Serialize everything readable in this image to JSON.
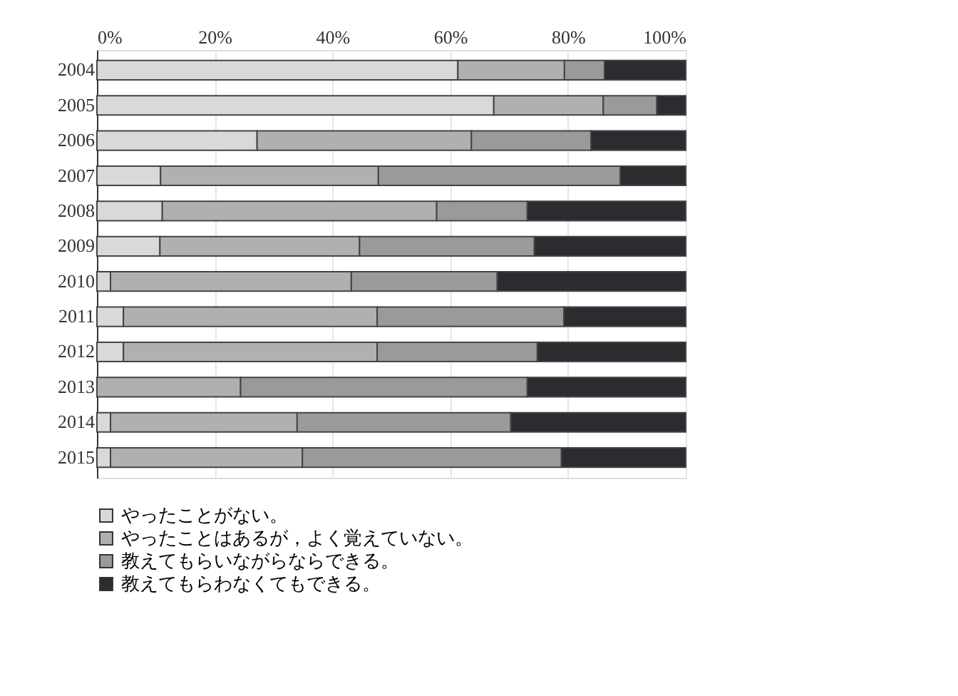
{
  "chart_data": {
    "type": "bar",
    "orientation": "horizontal",
    "stacked": true,
    "categories": [
      "2004",
      "2005",
      "2006",
      "2007",
      "2008",
      "2009",
      "2010",
      "2011",
      "2012",
      "2013",
      "2014",
      "2015"
    ],
    "series": [
      {
        "name": "やったことがない。",
        "color": "#d9d9d9",
        "values": [
          61.3,
          67.4,
          27.2,
          10.8,
          11.1,
          10.7,
          2.3,
          4.5,
          4.5,
          0,
          2.3,
          2.3
        ]
      },
      {
        "name": "やったことはあるが，よく覚えていない。",
        "color": "#b0b0b0",
        "values": [
          18.1,
          18.6,
          36.4,
          37.0,
          46.6,
          33.9,
          40.9,
          43.1,
          43.1,
          24.4,
          31.7,
          32.6
        ]
      },
      {
        "name": "教えてもらいながらならできる。",
        "color": "#9a9a9a",
        "values": [
          6.8,
          9.1,
          20.3,
          41.1,
          15.4,
          29.7,
          24.8,
          31.7,
          27.2,
          48.7,
          36.3,
          44.0
        ]
      },
      {
        "name": "教えてもらわなくてもできる。",
        "color": "#2b2b30",
        "values": [
          13.8,
          4.9,
          16.1,
          11.1,
          26.9,
          25.7,
          32.0,
          20.7,
          25.2,
          26.9,
          29.7,
          21.1
        ]
      }
    ],
    "xlim": [
      0,
      100
    ],
    "xticks": [
      {
        "value": 0,
        "label": "0%"
      },
      {
        "value": 20,
        "label": "20%"
      },
      {
        "value": 40,
        "label": "40%"
      },
      {
        "value": 60,
        "label": "60%"
      },
      {
        "value": 80,
        "label": "80%"
      },
      {
        "value": 100,
        "label": "100%"
      }
    ],
    "grid": "x",
    "legend": "bottom"
  }
}
